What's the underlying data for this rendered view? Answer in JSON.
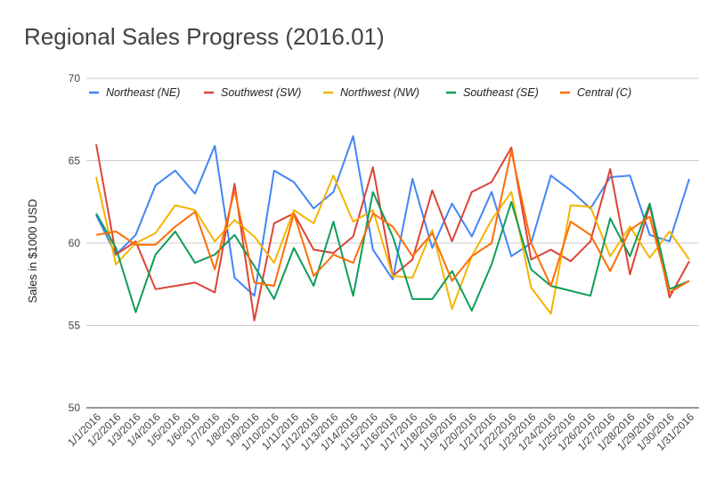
{
  "chart_data": {
    "type": "line",
    "title": "Regional Sales Progress (2016.01)",
    "xlabel": "",
    "ylabel": "Sales in $1000 USD",
    "ylim": [
      50,
      70
    ],
    "yticks": [
      "50",
      "55",
      "60",
      "65",
      "70"
    ],
    "grid": true,
    "legend_position": "top",
    "x": [
      "1/1/2016",
      "1/2/2016",
      "1/3/2016",
      "1/4/2016",
      "1/5/2016",
      "1/6/2016",
      "1/7/2016",
      "1/8/2016",
      "1/9/2016",
      "1/10/2016",
      "1/11/2016",
      "1/12/2016",
      "1/13/2016",
      "1/14/2016",
      "1/15/2016",
      "1/16/2016",
      "1/17/2016",
      "1/18/2016",
      "1/19/2016",
      "1/20/2016",
      "1/21/2016",
      "1/22/2016",
      "1/23/2016",
      "1/24/2016",
      "1/25/2016",
      "1/26/2016",
      "1/27/2016",
      "1/28/2016",
      "1/29/2016",
      "1/30/2016",
      "1/31/2016"
    ],
    "series": [
      {
        "name": "Northeast (NE)",
        "color": "#4285F4",
        "values": [
          61.7,
          59.3,
          60.5,
          63.5,
          64.4,
          63.0,
          65.9,
          57.9,
          56.8,
          64.4,
          63.7,
          62.1,
          63.1,
          66.5,
          59.6,
          57.8,
          63.9,
          59.7,
          62.4,
          60.4,
          63.1,
          59.2,
          60.0,
          64.1,
          63.2,
          62.1,
          64.0,
          64.1,
          60.5,
          60.1,
          63.9
        ]
      },
      {
        "name": "Southwest (SW)",
        "color": "#DB4437",
        "values": [
          66.0,
          59.3,
          60.1,
          57.2,
          57.4,
          57.6,
          57.0,
          63.6,
          55.3,
          61.2,
          61.8,
          59.6,
          59.4,
          60.4,
          64.6,
          58.0,
          59.0,
          63.2,
          60.1,
          63.1,
          63.7,
          65.8,
          59.0,
          59.6,
          58.9,
          60.1,
          64.5,
          58.1,
          62.3,
          56.7,
          58.9
        ]
      },
      {
        "name": "Northwest (NW)",
        "color": "#F4B400",
        "values": [
          64.0,
          58.7,
          60.0,
          60.6,
          62.3,
          62.0,
          60.1,
          61.4,
          60.4,
          58.8,
          62.0,
          61.2,
          64.1,
          61.3,
          62.0,
          58.0,
          57.9,
          60.8,
          56.0,
          59.2,
          61.4,
          63.1,
          57.3,
          55.7,
          62.3,
          62.2,
          59.2,
          61.0,
          59.1,
          60.7,
          59.0
        ]
      },
      {
        "name": "Southeast (SE)",
        "color": "#0F9D58",
        "values": [
          61.8,
          59.7,
          55.8,
          59.3,
          60.7,
          58.8,
          59.3,
          60.5,
          58.6,
          56.6,
          59.7,
          57.4,
          61.3,
          56.8,
          63.1,
          60.4,
          56.6,
          56.6,
          58.3,
          55.9,
          58.7,
          62.5,
          58.4,
          57.4,
          57.1,
          56.8,
          61.5,
          59.2,
          62.4,
          57.2,
          57.7
        ]
      },
      {
        "name": "Central (C)",
        "color": "#FF6D00",
        "values": [
          60.5,
          60.7,
          59.9,
          59.9,
          61.0,
          61.9,
          58.4,
          63.2,
          57.6,
          57.4,
          61.8,
          58.0,
          59.3,
          58.8,
          61.8,
          61.0,
          59.2,
          60.6,
          57.7,
          59.2,
          60.0,
          65.6,
          60.0,
          57.4,
          61.3,
          60.5,
          58.3,
          60.8,
          61.6,
          57.0,
          57.7
        ]
      }
    ]
  }
}
